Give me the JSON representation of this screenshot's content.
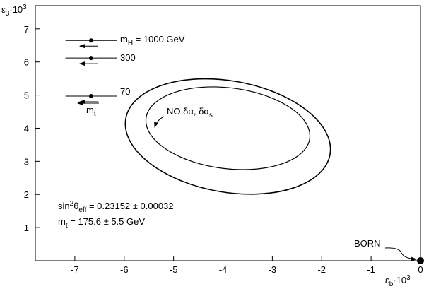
{
  "chart_data": {
    "type": "scatter",
    "x_label": [
      {
        "text": "ε"
      },
      {
        "text": "b",
        "shift": "sub"
      },
      {
        "text": "·10"
      },
      {
        "text": "3",
        "shift": "sup"
      }
    ],
    "y_label": [
      {
        "text": "ε"
      },
      {
        "text": "3",
        "shift": "sub"
      },
      {
        "text": "·10"
      },
      {
        "text": "3",
        "shift": "sup"
      }
    ],
    "xlim": [
      -7.8,
      0
    ],
    "ylim": [
      0,
      7.7
    ],
    "xticks": [
      -7,
      -6,
      -5,
      -4,
      -3,
      -2,
      -1,
      0
    ],
    "yticks": [
      1,
      2,
      3,
      4,
      5,
      6,
      7
    ],
    "points": {
      "x": [
        -6.67,
        -6.67,
        -6.67
      ],
      "y": [
        6.65,
        6.12,
        4.97
      ],
      "x_range": [
        [
          -7.19,
          -6.14
        ],
        [
          -7.19,
          -6.14
        ],
        [
          -7.19,
          -6.14
        ]
      ],
      "labels": [
        [
          {
            "text": "m"
          },
          {
            "text": "H",
            "shift": "sub"
          },
          {
            "text": " = 1000 GeV"
          }
        ],
        [
          {
            "text": "300"
          }
        ],
        [
          {
            "text": "70"
          }
        ]
      ]
    },
    "mt_label": [
      {
        "text": "m"
      },
      {
        "text": "t",
        "shift": "sub"
      }
    ],
    "ellipses": [
      {
        "cx": -3.9,
        "cy": 3.75,
        "rx": 2.1,
        "ry": 1.68,
        "angle": 10
      },
      {
        "cx": -3.9,
        "cy": 4.0,
        "rx": 1.67,
        "ry": 1.22,
        "angle": 7
      }
    ],
    "ellipse_label": [
      {
        "text": "NO δα, δα"
      },
      {
        "text": "s",
        "shift": "sub"
      }
    ],
    "fit_text": [
      [
        {
          "text": "sin"
        },
        {
          "text": "2",
          "shift": "sup"
        },
        {
          "text": "θ"
        },
        {
          "text": "eff",
          "shift": "sub"
        },
        {
          "text": " = 0.23152 ± 0.00032"
        }
      ],
      [
        {
          "text": "m"
        },
        {
          "text": "t",
          "shift": "sub"
        },
        {
          "text": " = 175.6 ± 5.5 GeV"
        }
      ]
    ],
    "born": {
      "x": 0,
      "y": 0,
      "label": "BORN"
    }
  }
}
